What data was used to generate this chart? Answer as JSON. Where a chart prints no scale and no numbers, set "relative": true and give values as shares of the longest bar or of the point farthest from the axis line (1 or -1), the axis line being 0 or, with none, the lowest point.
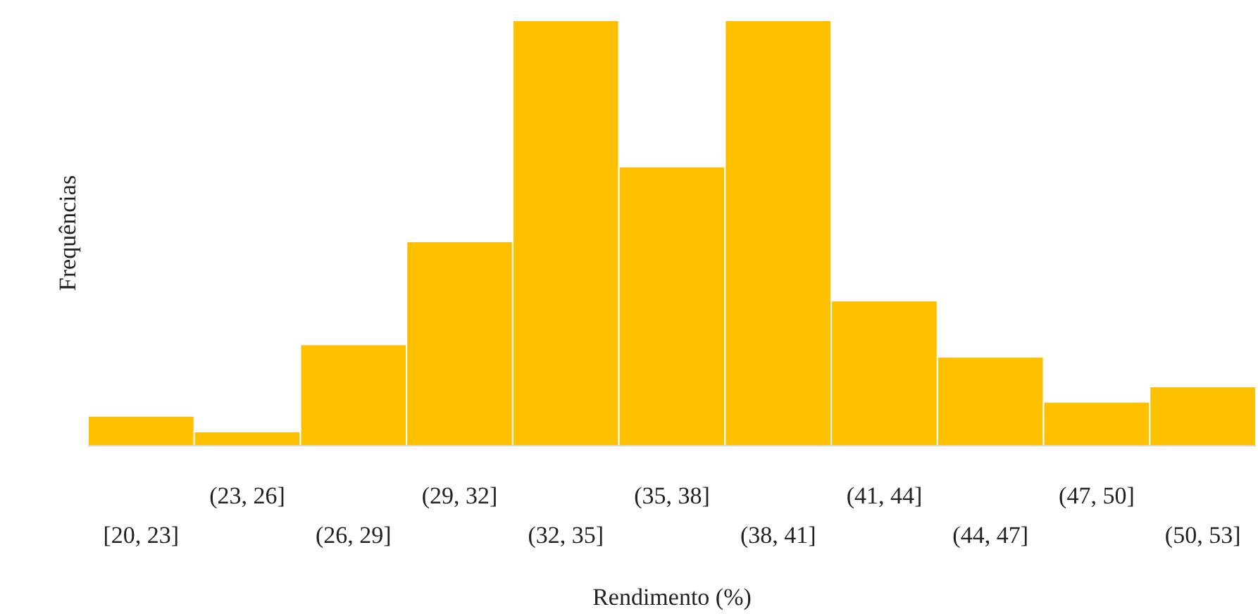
{
  "chart_data": {
    "type": "bar",
    "relative": true,
    "xlabel": "Rendimento (%)",
    "ylabel": "Frequências",
    "color": "#ffc000",
    "categories": [
      "[20, 23]",
      "(23, 26]",
      "(26, 29]",
      "(29, 32]",
      "(32, 35]",
      "(35, 38]",
      "(38, 41]",
      "(41, 44]",
      "(44, 47]",
      "(47, 50]",
      "(50, 53]"
    ],
    "values": [
      0.07,
      0.033,
      0.238,
      0.48,
      1,
      0.656,
      1,
      0.341,
      0.209,
      0.103,
      0.139
    ],
    "grid": false
  }
}
